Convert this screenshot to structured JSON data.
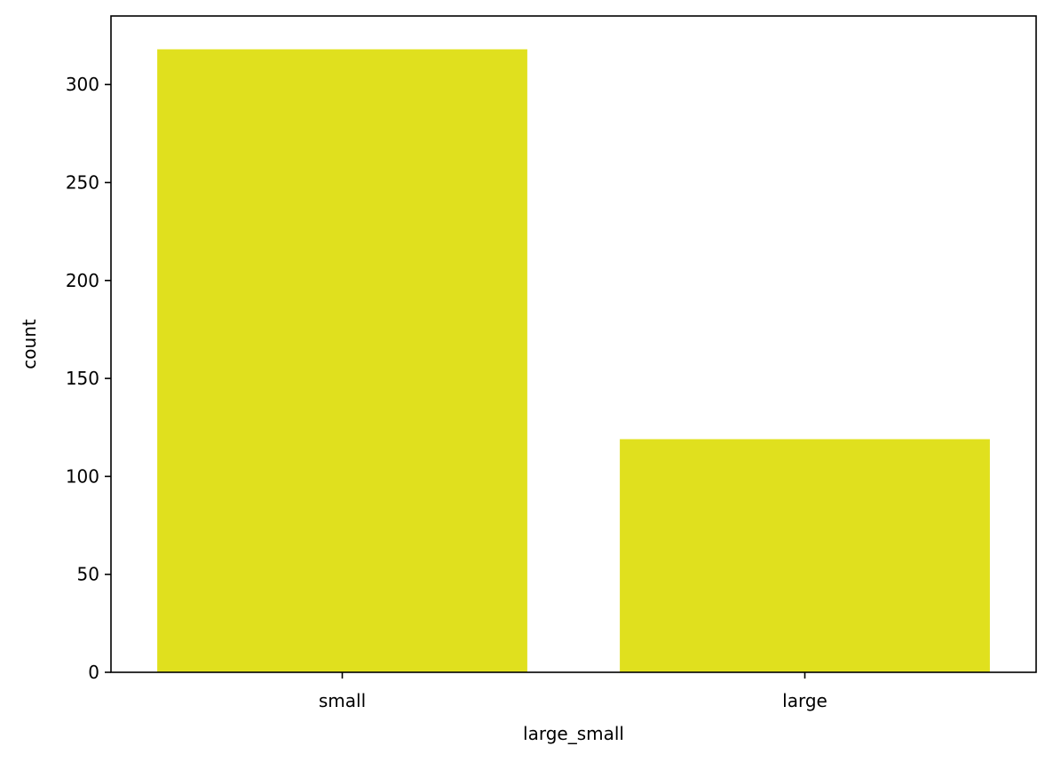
{
  "chart_data": {
    "type": "bar",
    "title": "",
    "xlabel": "large_small",
    "ylabel": "count",
    "categories": [
      "small",
      "large"
    ],
    "values": [
      318,
      119
    ],
    "ylim": [
      0,
      335
    ],
    "yticks": [
      0,
      50,
      100,
      150,
      200,
      250,
      300
    ],
    "ytick_labels": [
      "0",
      "50",
      "100",
      "150",
      "200",
      "250",
      "300"
    ],
    "grid": false,
    "legend": "none",
    "bar_color": "#e0e01e"
  }
}
